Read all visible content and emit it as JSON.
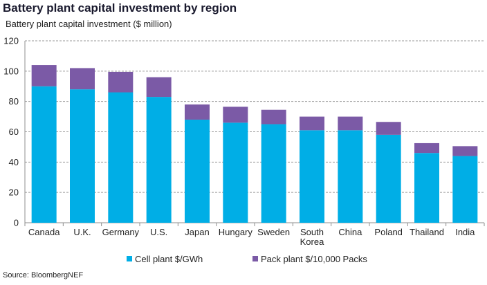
{
  "title": "Battery plant capital investment by region",
  "source": "Source: BloombergNEF",
  "chart_data": {
    "type": "bar",
    "stacked": true,
    "title": "Battery plant capital investment by region",
    "ylabel": "Battery plant capital investment ($ million)",
    "xlabel": "",
    "ylim": [
      0,
      120
    ],
    "yticks": [
      0,
      20,
      40,
      60,
      80,
      100,
      120
    ],
    "grid": true,
    "legend_position": "bottom",
    "categories": [
      "Canada",
      "U.K.",
      "Germany",
      "U.S.",
      "Japan",
      "Hungary",
      "Sweden",
      "South Korea",
      "China",
      "Poland",
      "Thailand",
      "India"
    ],
    "category_lines": [
      [
        "Canada"
      ],
      [
        "U.K."
      ],
      [
        "Germany"
      ],
      [
        "U.S."
      ],
      [
        "Japan"
      ],
      [
        "Hungary"
      ],
      [
        "Sweden"
      ],
      [
        "South",
        "Korea"
      ],
      [
        "China"
      ],
      [
        "Poland"
      ],
      [
        "Thailand"
      ],
      [
        "India"
      ]
    ],
    "series": [
      {
        "name": "Cell plant $/GWh",
        "color": "#00aee6",
        "values": [
          90,
          88,
          86,
          83,
          68,
          66,
          65,
          61,
          61,
          58,
          46,
          44
        ]
      },
      {
        "name": "Pack plant $/10,000 Packs",
        "color": "#7b5aa6",
        "values": [
          14,
          14,
          13.5,
          13,
          10,
          10.5,
          9.5,
          9,
          9,
          8.5,
          6.5,
          6.5
        ]
      }
    ]
  }
}
